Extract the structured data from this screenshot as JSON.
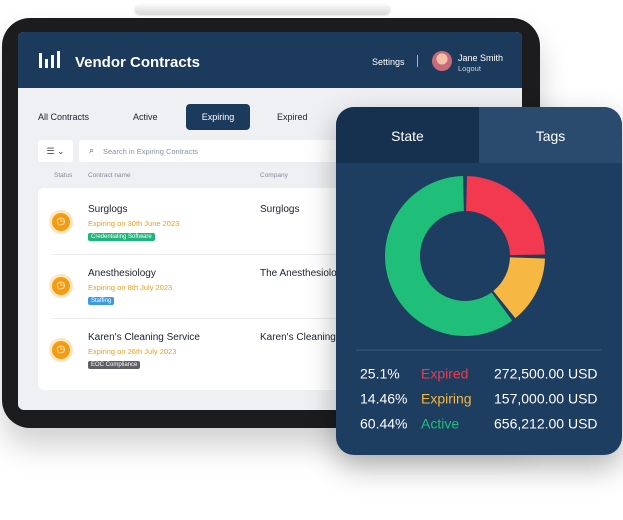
{
  "header": {
    "title": "Vendor Contracts",
    "settings": "Settings",
    "user_name": "Jane Smith",
    "logout": "Logout"
  },
  "tabs": [
    "All Contracts",
    "Active",
    "Expiring",
    "Expired"
  ],
  "active_tab": 2,
  "search_placeholder": "Search in Expiring Contracts",
  "columns": [
    "Status",
    "Contract name",
    "Company"
  ],
  "rows": [
    {
      "name": "Surglogs",
      "expiry": "Expiring on 30th June 2023",
      "tag": "Credentialing Software",
      "tag_color": "#1fb57a",
      "company": "Surglogs"
    },
    {
      "name": "Anesthesiology",
      "expiry": "Expiring on 8th July 2023",
      "tag": "Staffing",
      "tag_color": "#3b9ae1",
      "company": "The Anesthesiolo"
    },
    {
      "name": "Karen's Cleaning Service",
      "expiry": "Expiring on 26th July 2023",
      "tag": "EOC Compliance",
      "tag_color": "#5f5f66",
      "company": "Karen's Cleaning"
    }
  ],
  "panel_tabs": [
    "State",
    "Tags"
  ],
  "chart_data": {
    "type": "pie",
    "donut": true,
    "categories": [
      "Expired",
      "Expiring",
      "Active"
    ],
    "values": [
      25.1,
      14.46,
      60.44
    ],
    "value_labels": [
      "25.1%",
      "14.46%",
      "60.44%"
    ],
    "amounts": [
      "272,500.00 USD",
      "157,000.00 USD",
      "656,212.00 USD"
    ],
    "colors": [
      "#f2394f",
      "#f6b843",
      "#1fbf7a"
    ]
  }
}
